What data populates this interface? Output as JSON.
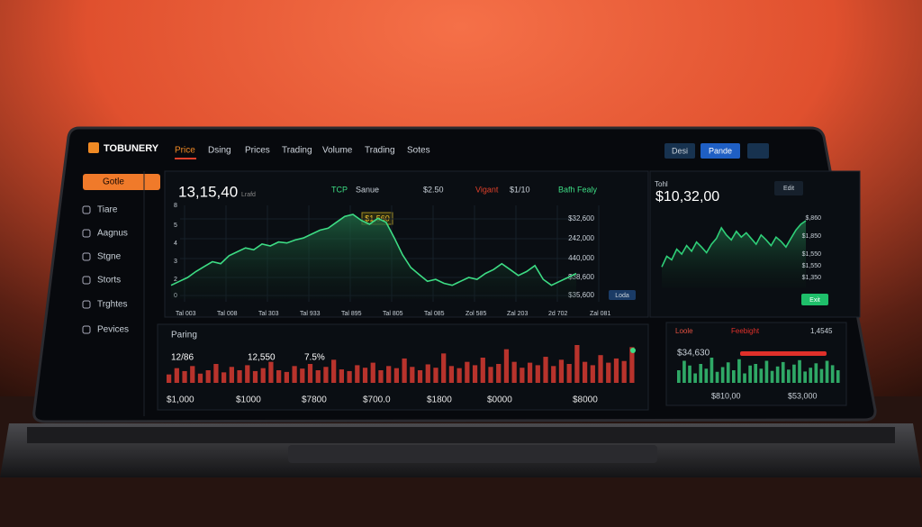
{
  "header": {
    "brand": "TOBUNERY",
    "nav": [
      "Price",
      "Dsing",
      "Prices",
      "Trading",
      "Volume",
      "Trading",
      "Sotes"
    ],
    "buttons": [
      "Desi",
      "Pande"
    ]
  },
  "sidebar": {
    "items": [
      "Gotle",
      "Tiare",
      "Aagnus",
      "Stgne",
      "Storts",
      "Trghtes",
      "Pevices"
    ]
  },
  "main_panel": {
    "price": "13,15,40",
    "price_note": "Lrafd",
    "controls": [
      "TCP",
      "Sanue",
      "$2.50",
      "Vigant",
      "$1/10",
      "Bafh Fealy"
    ],
    "peak_label": "$1,560",
    "y_labels_left": [
      "8",
      "5",
      "4",
      "3",
      "2",
      "0"
    ],
    "y_labels_right": [
      "$32,600",
      "242,000",
      "440,000",
      "$38,600",
      "$35,600"
    ],
    "x_labels": [
      "Tal 003",
      "Tal 008",
      "Tal 303",
      "Tal 933",
      "Tal 895",
      "Tal 805",
      "Tal 085",
      "Zol 585",
      "Zal 203",
      "2d 702",
      "Zal 081"
    ],
    "badge": "Loda",
    "line": {
      "values": [
        14,
        18,
        22,
        28,
        33,
        38,
        36,
        44,
        48,
        52,
        50,
        56,
        54,
        58,
        57,
        60,
        62,
        66,
        70,
        72,
        78,
        84,
        86,
        80,
        76,
        82,
        78,
        62,
        45,
        32,
        25,
        18,
        20,
        16,
        14,
        18,
        22,
        20,
        26,
        30,
        36,
        30,
        24,
        28,
        34,
        20,
        14,
        18,
        22,
        26
      ]
    }
  },
  "volume_panel": {
    "title": "Paring",
    "stats": [
      "12/86",
      "12,550",
      "7.5%"
    ],
    "x_labels": [
      "$1,000",
      "$1000",
      "$7800",
      "$700.0",
      "$1800",
      "$0000",
      "$8000"
    ],
    "bars": {
      "values": [
        20,
        35,
        28,
        40,
        22,
        30,
        45,
        25,
        38,
        30,
        42,
        28,
        35,
        50,
        30,
        26,
        40,
        34,
        45,
        30,
        38,
        55,
        32,
        28,
        42,
        36,
        48,
        30,
        40,
        35,
        58,
        38,
        30,
        44,
        36,
        70,
        40,
        35,
        50,
        42,
        60,
        38,
        45,
        80,
        50,
        36,
        48,
        42,
        62,
        40,
        55,
        45,
        90,
        50,
        42,
        66,
        48,
        58,
        52,
        85
      ]
    }
  },
  "right_panel": {
    "label": "Tohl",
    "price": "$10,32,00",
    "button": "Edit",
    "y_labels": [
      "$,860",
      "$1,850",
      "$1,550",
      "$1,550",
      "$1,350"
    ],
    "badge": "Exit",
    "line": {
      "values": [
        30,
        45,
        40,
        55,
        48,
        60,
        52,
        65,
        58,
        50,
        62,
        70,
        85,
        75,
        68,
        80,
        72,
        78,
        70,
        62,
        75,
        68,
        60,
        72,
        66,
        58,
        70,
        82,
        90,
        95
      ]
    }
  },
  "side_panel": {
    "labels": [
      "Loole",
      "Feebight",
      "1,4545"
    ],
    "price": "$34,630",
    "x_labels": [
      "$810,00",
      "$53,000"
    ],
    "bars": {
      "values": [
        40,
        70,
        55,
        30,
        60,
        45,
        80,
        35,
        50,
        65,
        40,
        75,
        30,
        55,
        60,
        45,
        70,
        38,
        52,
        66,
        42,
        58,
        72,
        36,
        48,
        62,
        44,
        70,
        56,
        40
      ]
    }
  }
}
